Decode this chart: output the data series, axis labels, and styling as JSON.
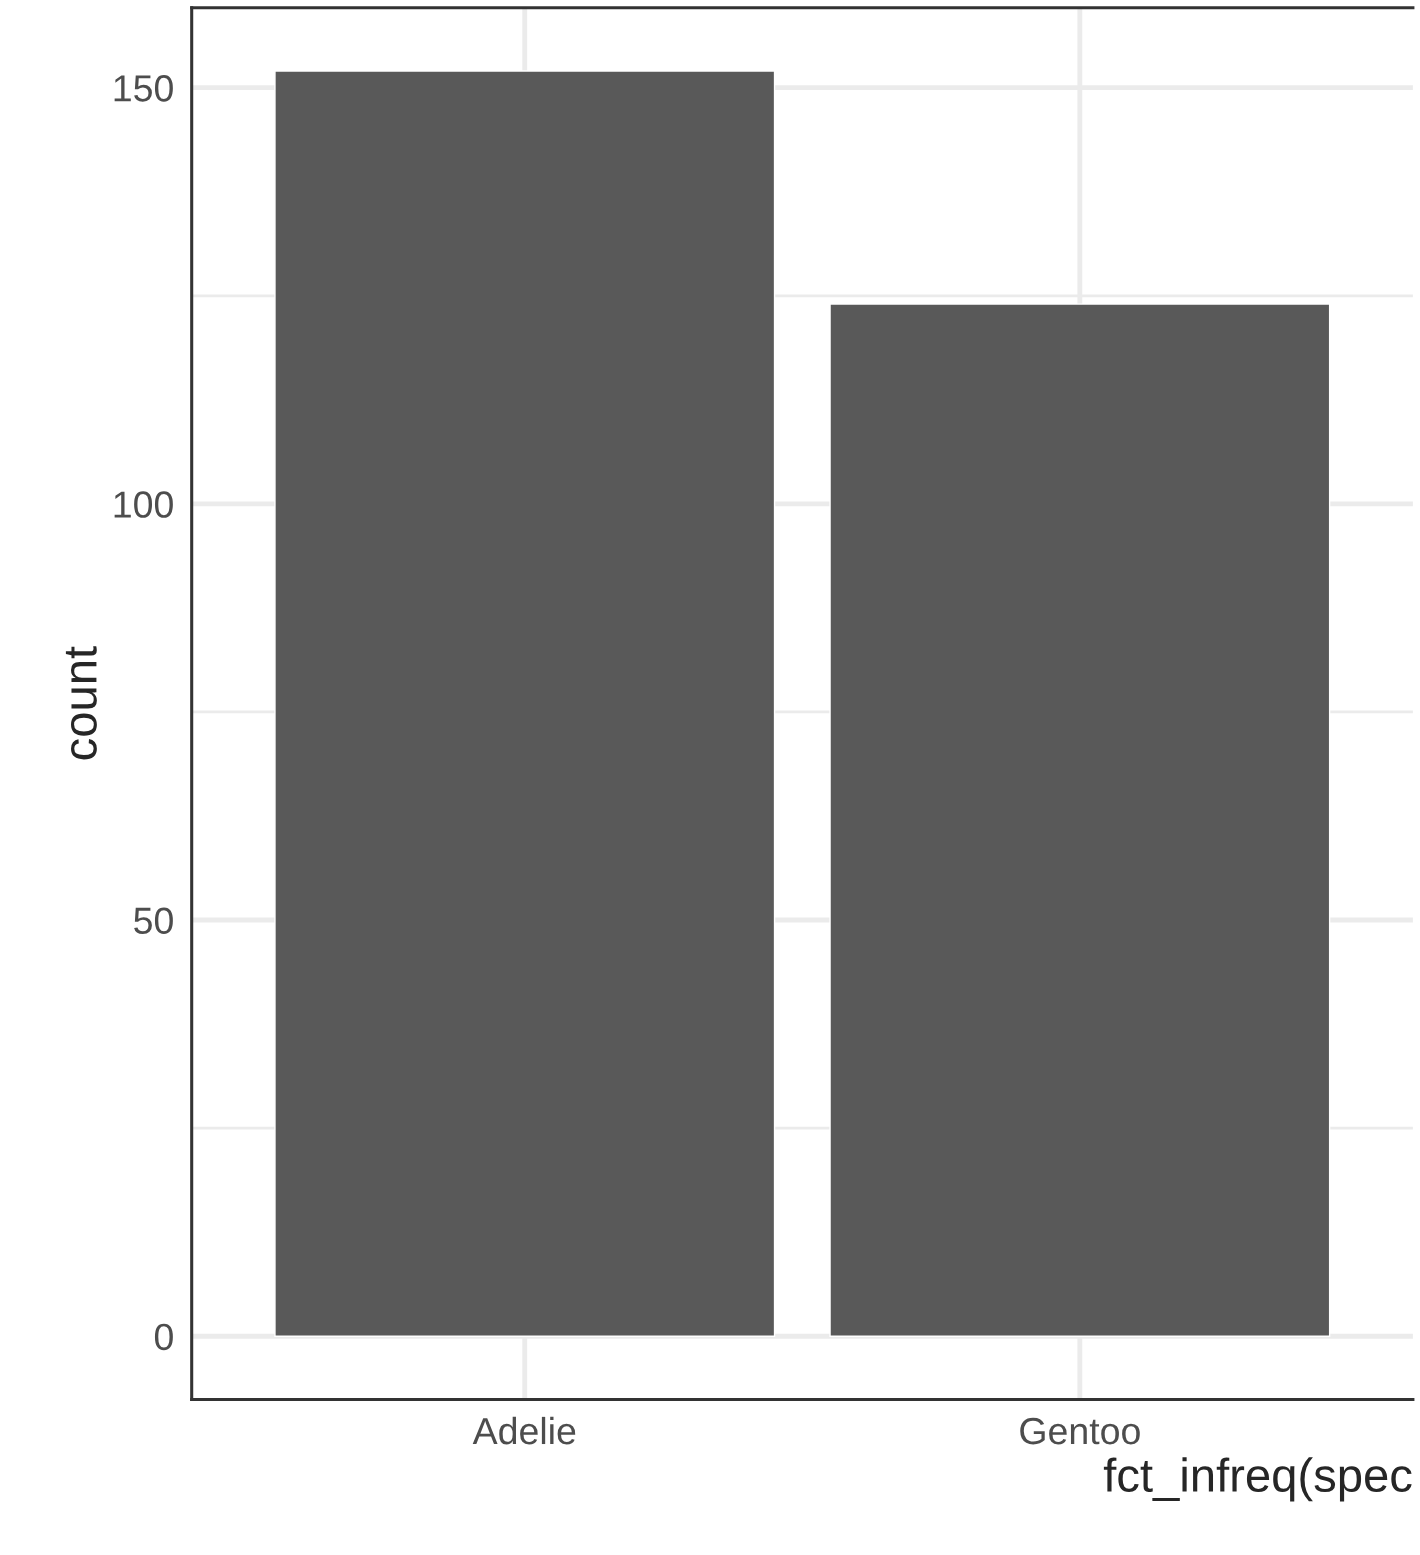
{
  "chart_data": {
    "type": "bar",
    "xlabel": "fct_infreq(spec",
    "ylabel": "count",
    "categories": [
      "Adelie",
      "Gentoo"
    ],
    "values": [
      152,
      124
    ],
    "color": "#595959",
    "ylim": [
      -7.6,
      159.6
    ],
    "yticks": [
      0,
      50,
      100,
      150
    ],
    "grid": true
  }
}
